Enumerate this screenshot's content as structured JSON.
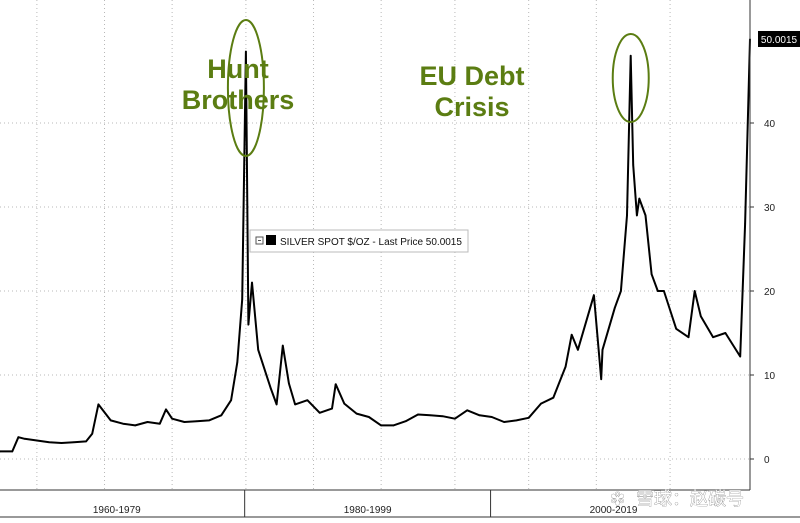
{
  "chart_data": {
    "type": "line",
    "title": "",
    "xlabel": "",
    "ylabel": "",
    "xlim": [
      1960,
      2021
    ],
    "ylim": [
      -4,
      55
    ],
    "y_ticks": [
      0,
      10,
      20,
      30,
      40
    ],
    "x_tick_labels": [
      "1960-1979",
      "1980-1999",
      "2000-2019"
    ],
    "grid": true,
    "legend": "SILVER SPOT $/OZ - Last Price 50.0015",
    "last_price_label": "50.0015",
    "last_price": 50.0015,
    "series": [
      {
        "name": "SILVER SPOT $/OZ",
        "color": "#000000",
        "x": [
          1960,
          1961,
          1961.5,
          1962,
          1963,
          1964,
          1965,
          1966,
          1967,
          1967.5,
          1968,
          1969,
          1970,
          1971,
          1972,
          1973,
          1973.5,
          1974,
          1975,
          1976,
          1977,
          1978,
          1978.8,
          1979.3,
          1979.7,
          1980.0,
          1980.2,
          1980.5,
          1981,
          1982,
          1982.5,
          1983,
          1983.5,
          1984,
          1985,
          1986,
          1987,
          1987.3,
          1988,
          1989,
          1990,
          1991,
          1992,
          1993,
          1994,
          1995,
          1996,
          1997,
          1998,
          1999,
          2000,
          2001,
          2002,
          2003,
          2004,
          2005,
          2006,
          2006.5,
          2007,
          2008,
          2008.3,
          2008.9,
          2009,
          2010,
          2010.5,
          2011.0,
          2011.3,
          2011.5,
          2011.8,
          2012,
          2012.5,
          2013,
          2013.5,
          2014,
          2015,
          2016,
          2016.5,
          2017,
          2018,
          2019,
          2020.2,
          2020.6,
          2021
        ],
        "values": [
          0.9,
          0.9,
          2.6,
          2.4,
          2.2,
          2.0,
          1.9,
          2.0,
          2.1,
          3.0,
          6.5,
          4.6,
          4.2,
          4.0,
          4.4,
          4.2,
          5.9,
          4.8,
          4.4,
          4.5,
          4.6,
          5.2,
          7.0,
          11.5,
          19.0,
          48.5,
          16.0,
          21.0,
          13.0,
          8.5,
          6.5,
          13.5,
          9.0,
          6.5,
          7.0,
          5.5,
          6.0,
          8.9,
          6.6,
          5.4,
          5.0,
          4.0,
          4.0,
          4.5,
          5.3,
          5.2,
          5.1,
          4.8,
          5.8,
          5.2,
          5.0,
          4.4,
          4.6,
          4.9,
          6.6,
          7.3,
          11.0,
          14.8,
          13.0,
          18.0,
          19.5,
          9.5,
          13.0,
          18.0,
          20.0,
          29.0,
          48.0,
          35.0,
          29.0,
          31.0,
          29.0,
          22.0,
          20.0,
          20.0,
          15.5,
          14.5,
          20.0,
          17.0,
          14.5,
          15.0,
          12.2,
          28.0,
          50.0
        ]
      }
    ],
    "annotations": [
      {
        "lines": [
          "Hunt",
          "Brothers"
        ],
        "year": 1980.0
      },
      {
        "lines": [
          "EU Debt",
          "Crisis"
        ],
        "year": 2011.3
      }
    ],
    "colors": {
      "annotation": "#5b7d12",
      "line": "#000000"
    }
  },
  "watermark": {
    "text": "雪球：赵碳号"
  }
}
